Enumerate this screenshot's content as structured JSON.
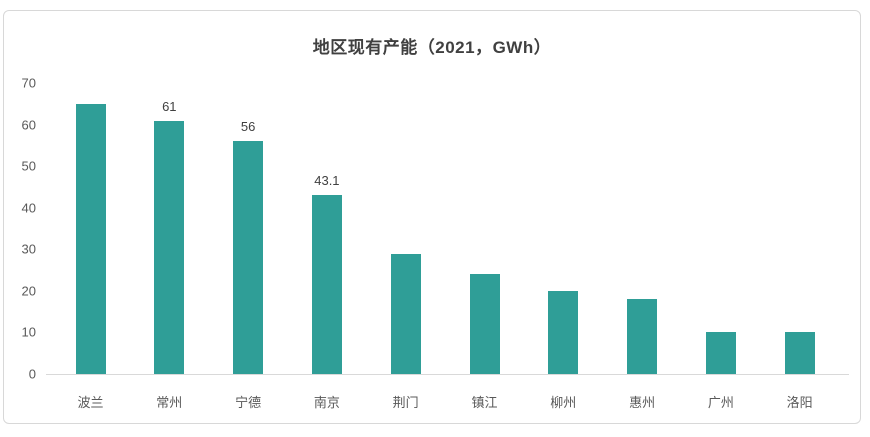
{
  "chart_data": {
    "type": "bar",
    "title": "地区现有产能（2021，GWh）",
    "categories": [
      "波兰",
      "常州",
      "宁德",
      "南京",
      "荆门",
      "镇江",
      "柳州",
      "惠州",
      "广州",
      "洛阳"
    ],
    "values": [
      65,
      61,
      56,
      43.1,
      29,
      24,
      20,
      18,
      10,
      10
    ],
    "data_labels": [
      "",
      "61",
      "56",
      "43.1",
      "",
      "",
      "",
      "",
      "",
      ""
    ],
    "xlabel": "",
    "ylabel": "",
    "ylim": [
      0,
      70
    ],
    "yticks": [
      0,
      10,
      20,
      30,
      40,
      50,
      60,
      70
    ],
    "grid": false,
    "legend_position": "none"
  },
  "colors": {
    "bar": "#2F9E97",
    "title_text": "#404040",
    "axis_tick_text": "#595959",
    "data_label_text": "#404040",
    "axis_line": "#d9d9d9",
    "card_border": "#d8d8d8",
    "background": "#ffffff"
  }
}
